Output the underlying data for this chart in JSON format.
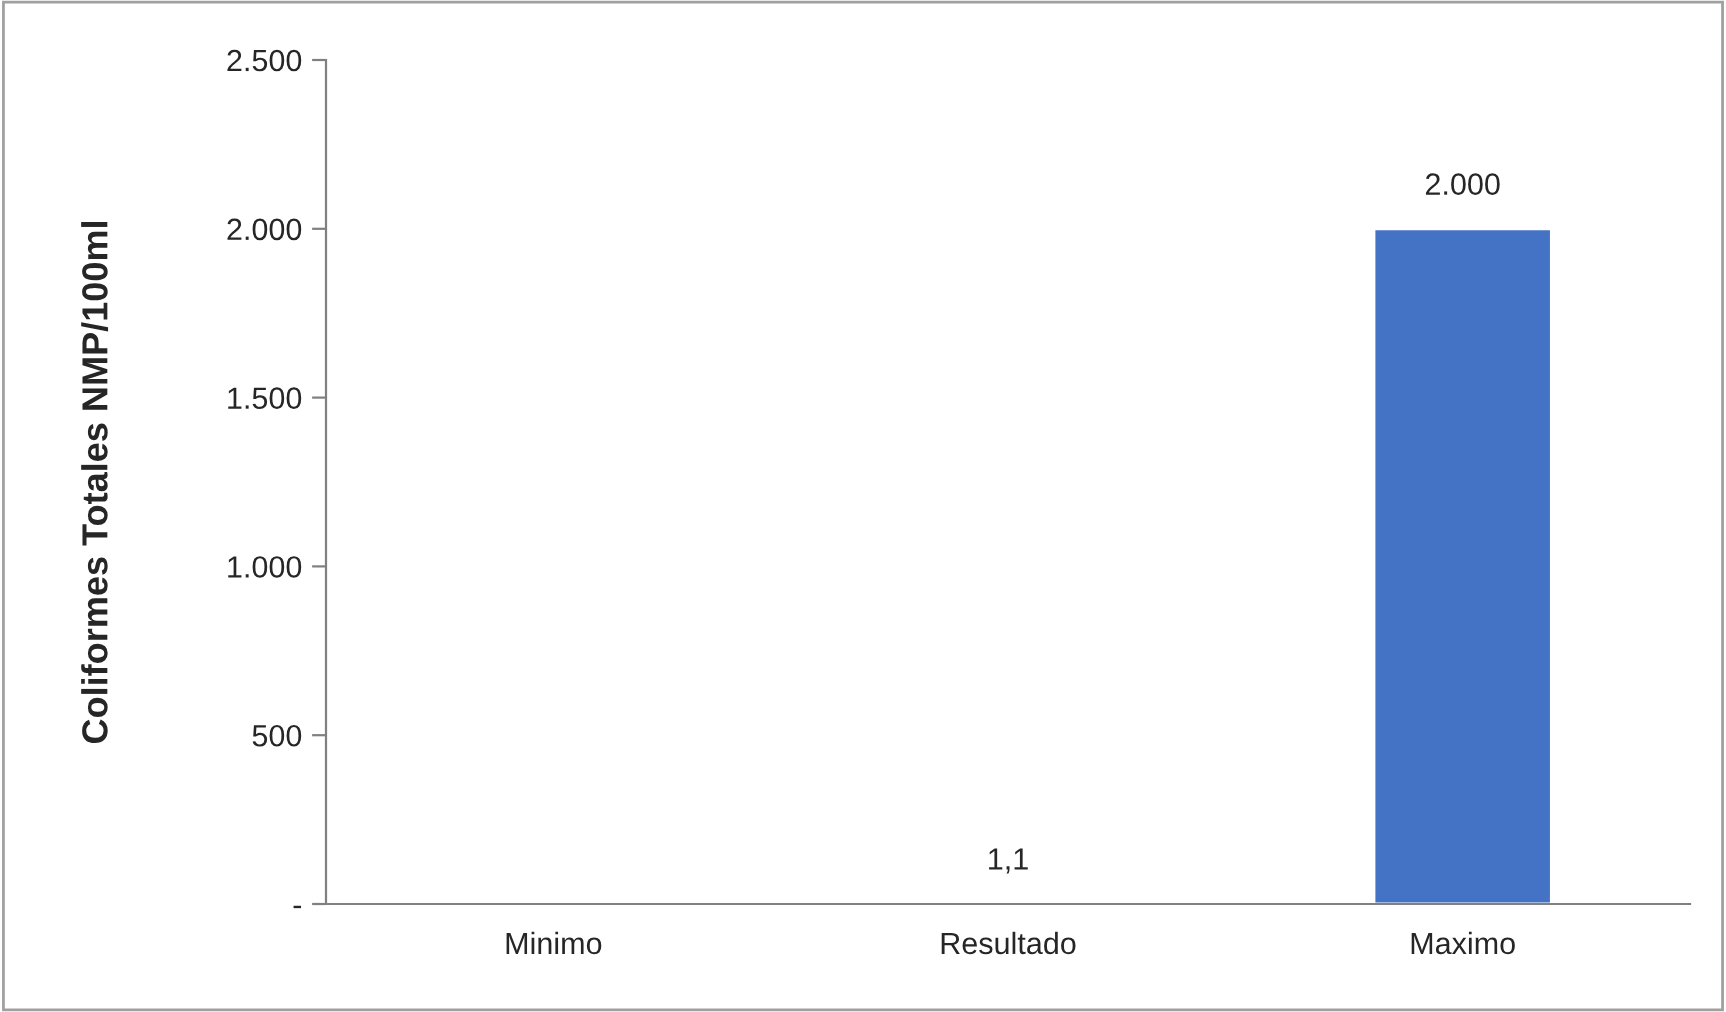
{
  "chart_data": {
    "type": "bar",
    "ylabel": "Coliformes Totales NMP/100ml",
    "categories": [
      "Minimo",
      "Resultado",
      "Maximo"
    ],
    "values": [
      null,
      1.1,
      2000
    ],
    "value_labels": [
      null,
      "1,1",
      "2.000"
    ],
    "color": "#4472c4",
    "ylim": [
      0,
      2500
    ],
    "yticks": [
      {
        "value": 0,
        "label": "-"
      },
      500,
      {
        "value": 1000,
        "label": "1.000"
      },
      {
        "value": 1500,
        "label": "1.500"
      },
      {
        "value": 2000,
        "label": "2.000"
      },
      {
        "value": 2500,
        "label": "2.500"
      }
    ],
    "grid": false,
    "legend": false
  }
}
